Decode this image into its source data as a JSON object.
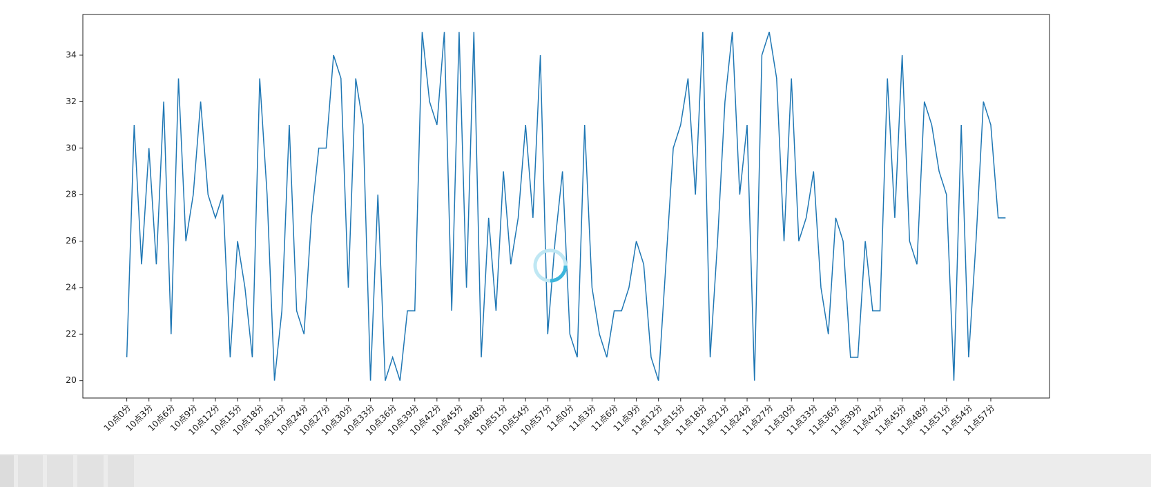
{
  "chart_data": {
    "type": "line",
    "categories": [
      "10点0分",
      null,
      null,
      "10点3分",
      null,
      null,
      "10点6分",
      null,
      null,
      "10点9分",
      null,
      null,
      "10点12分",
      null,
      null,
      "10点15分",
      null,
      null,
      "10点18分",
      null,
      null,
      "10点21分",
      null,
      null,
      "10点24分",
      null,
      null,
      "10点27分",
      null,
      null,
      "10点30分",
      null,
      null,
      "10点33分",
      null,
      null,
      "10点36分",
      null,
      null,
      "10点39分",
      null,
      null,
      "10点42分",
      null,
      null,
      "10点45分",
      null,
      null,
      "10点48分",
      null,
      null,
      "10点51分",
      null,
      null,
      "10点54分",
      null,
      null,
      "10点57分",
      null,
      null,
      "11点0分",
      null,
      null,
      "11点3分",
      null,
      null,
      "11点6分",
      null,
      null,
      "11点9分",
      null,
      null,
      "11点12分",
      null,
      null,
      "11点15分",
      null,
      null,
      "11点18分",
      null,
      null,
      "11点21分",
      null,
      null,
      "11点24分",
      null,
      null,
      "11点27分",
      null,
      null,
      "11点30分",
      null,
      null,
      "11点33分",
      null,
      null,
      "11点36分",
      null,
      null,
      "11点39分",
      null,
      null,
      "11点42分",
      null,
      null,
      "11点45分",
      null,
      null,
      "11点48分",
      null,
      null,
      "11点51分",
      null,
      null,
      "11点54分",
      null,
      null,
      "11点57分",
      null,
      null
    ],
    "values": [
      21,
      31,
      25,
      30,
      25,
      32,
      22,
      33,
      26,
      28,
      32,
      28,
      27,
      28,
      21,
      26,
      24,
      21,
      33,
      28,
      20,
      23,
      31,
      23,
      22,
      27,
      30,
      30,
      34,
      33,
      24,
      33,
      31,
      20,
      28,
      20,
      21,
      20,
      23,
      23,
      35,
      32,
      31,
      35,
      23,
      35,
      24,
      35,
      21,
      27,
      23,
      29,
      25,
      27,
      31,
      27,
      34,
      22,
      26,
      29,
      22,
      21,
      31,
      24,
      22,
      21,
      23,
      23,
      24,
      26,
      25,
      21,
      20,
      25,
      30,
      31,
      33,
      28,
      35,
      21,
      26,
      32,
      35,
      28,
      31,
      20,
      34,
      35,
      33,
      26,
      33,
      26,
      27,
      29,
      24,
      22,
      27,
      26,
      21,
      21,
      26,
      23,
      23,
      33,
      27,
      34,
      26,
      25,
      32,
      31,
      29,
      28,
      20,
      31,
      21,
      26,
      32,
      31,
      27,
      27
    ],
    "color": "#1f77b4",
    "xlim": [
      -5.95,
      124.95
    ],
    "ylim": [
      19.25,
      35.75
    ],
    "yticks": [
      20,
      22,
      24,
      26,
      28,
      30,
      32,
      34
    ]
  }
}
